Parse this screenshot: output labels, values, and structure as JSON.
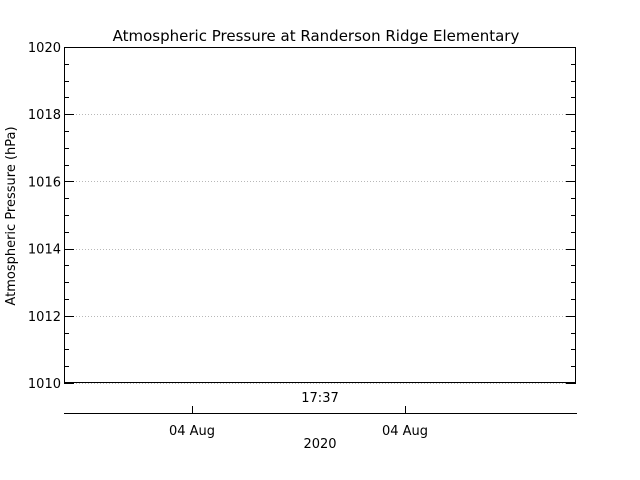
{
  "chart_data": {
    "type": "line",
    "title": "Atmospheric Pressure at Randerson Ridge Elementary",
    "xlabel": "",
    "ylabel": "Atmospheric Pressure (hPa)",
    "ylim": [
      1010,
      1020
    ],
    "yticks": [
      1010,
      1012,
      1014,
      1016,
      1018,
      1020
    ],
    "ytick_labels": [
      "1010",
      "1012",
      "1014",
      "1016",
      "1018",
      "1020"
    ],
    "y_minor_step": 0.5,
    "x_time_label": "17:37",
    "x_date_ticks": [
      "04 Aug",
      "04 Aug"
    ],
    "x_year_label": "2020",
    "grid": true,
    "series": [
      {
        "values": []
      }
    ]
  }
}
